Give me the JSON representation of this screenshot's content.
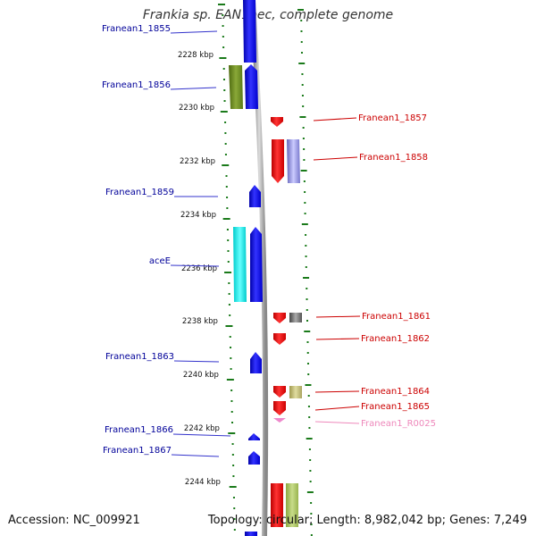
{
  "title": "Frankia sp. EAN1pec, complete genome",
  "footer": {
    "accession": "Accession: NC_009921",
    "topology": "Topology: circular; Length: 8,982,042 bp; Genes: 7,249"
  },
  "kbp_ticks": [
    "2228 kbp",
    "2230 kbp",
    "2232 kbp",
    "2234 kbp",
    "2236 kbp",
    "2238 kbp",
    "2240 kbp",
    "2242 kbp",
    "2244 kbp"
  ],
  "genes_left": [
    "Franean1_1855",
    "Franean1_1856",
    "Franean1_1859",
    "aceE",
    "Franean1_1863",
    "Franean1_1866",
    "Franean1_1867"
  ],
  "genes_right": [
    "Franean1_1857",
    "Franean1_1858",
    "Franean1_1861",
    "Franean1_1862",
    "Franean1_1864",
    "Franean1_1865",
    "Franean1_R0025"
  ],
  "colors": {
    "forward_cds": "#0000ee",
    "reverse_cds": "#ee0000",
    "label_forward": "#000099",
    "label_reverse": "#cc0000",
    "label_rna": "#ee88bb",
    "tick_green": "#1a7a1a"
  }
}
